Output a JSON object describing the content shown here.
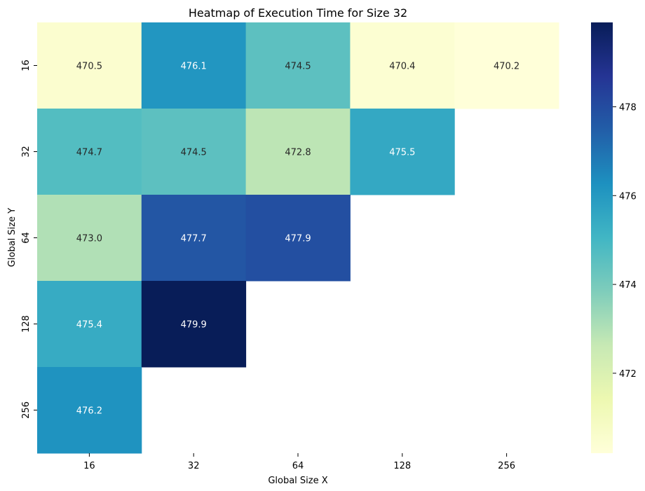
{
  "chart_data": {
    "type": "heatmap",
    "title": "Heatmap of Execution Time for Size 32",
    "xlabel": "Global Size X",
    "ylabel": "Global Size Y",
    "x_categories": [
      "16",
      "32",
      "64",
      "128",
      "256"
    ],
    "y_categories": [
      "16",
      "32",
      "64",
      "128",
      "256"
    ],
    "values": [
      [
        470.5,
        476.1,
        474.5,
        470.4,
        470.2
      ],
      [
        474.7,
        474.5,
        472.8,
        475.5,
        null
      ],
      [
        473.0,
        477.7,
        477.9,
        null,
        null
      ],
      [
        475.4,
        479.9,
        null,
        null,
        null
      ],
      [
        476.2,
        null,
        null,
        null,
        null
      ]
    ],
    "cell_labels": [
      [
        "470.5",
        "476.1",
        "474.5",
        "470.4",
        "470.2"
      ],
      [
        "474.7",
        "474.5",
        "472.8",
        "475.5",
        ""
      ],
      [
        "473.0",
        "477.7",
        "477.9",
        "",
        ""
      ],
      [
        "475.4",
        "479.9",
        "",
        "",
        ""
      ],
      [
        "476.2",
        "",
        "",
        "",
        ""
      ]
    ],
    "colormap": "YlGnBu",
    "vmin": 470.2,
    "vmax": 479.9,
    "colorbar_ticks": [
      472,
      474,
      476,
      478
    ],
    "colorbar_tick_labels": [
      "472",
      "474",
      "476",
      "478"
    ]
  }
}
